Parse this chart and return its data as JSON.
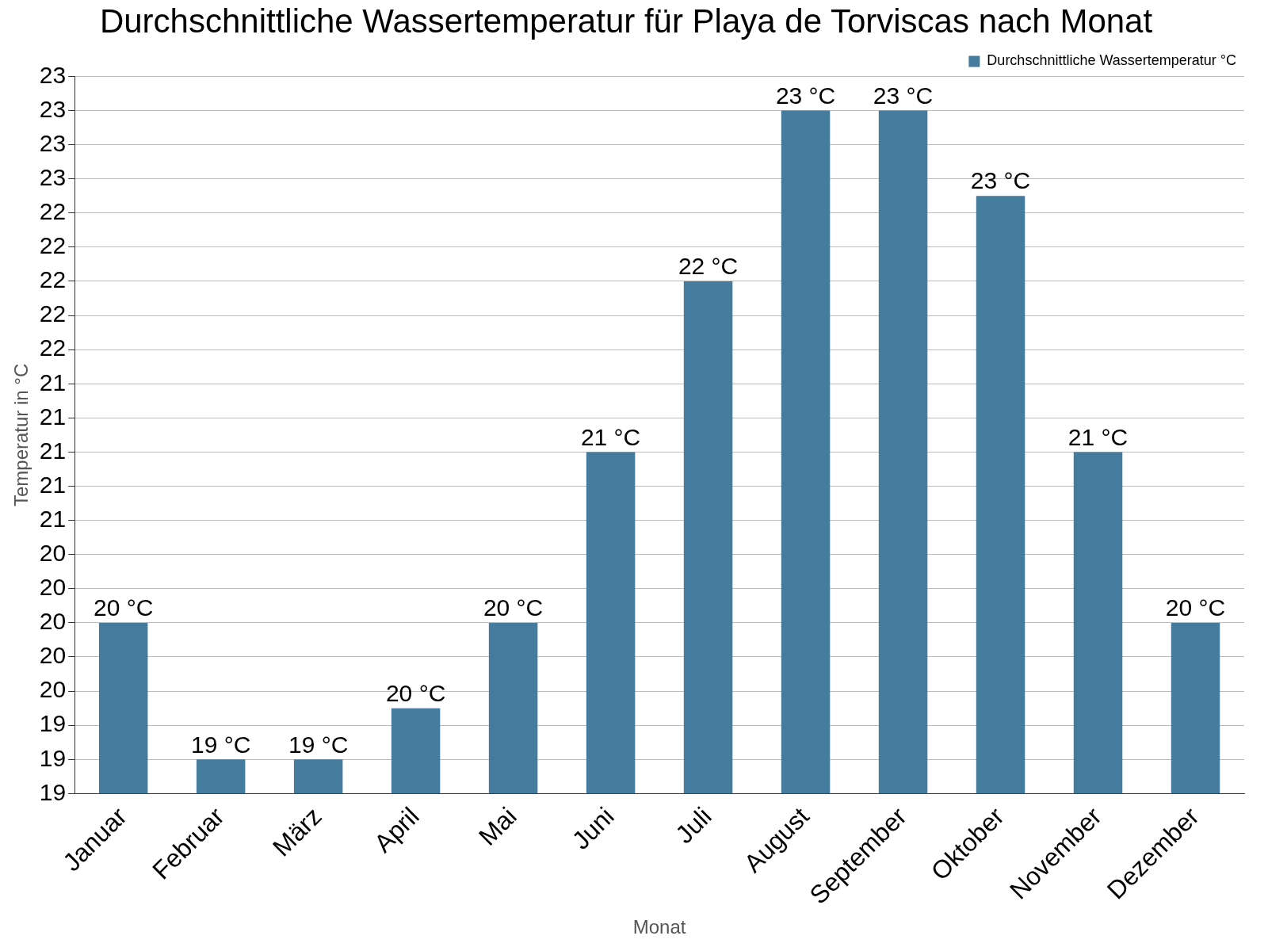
{
  "chart_data": {
    "type": "bar",
    "title": "Durchschnittliche Wassertemperatur für Playa de Torviscas nach Monat",
    "xlabel": "Monat",
    "ylabel": "Temperatur in °C",
    "categories": [
      "Januar",
      "Februar",
      "März",
      "April",
      "Mai",
      "Juni",
      "Juli",
      "August",
      "September",
      "Oktober",
      "November",
      "Dezember"
    ],
    "series": [
      {
        "name": "Durchschnittliche Wassertemperatur °C",
        "color": "#457b9d",
        "values": [
          20.0,
          19.2,
          19.2,
          19.5,
          20.0,
          21.0,
          22.0,
          23.0,
          23.0,
          22.5,
          21.0,
          20.0
        ],
        "value_labels": [
          "20 °C",
          "19 °C",
          "19 °C",
          "20 °C",
          "20 °C",
          "21 °C",
          "22 °C",
          "23 °C",
          "23 °C",
          "23 °C",
          "21 °C",
          "20 °C"
        ]
      }
    ],
    "ylim": [
      19.0,
      23.2
    ],
    "yticks": [
      {
        "value": 19.0,
        "label": "19"
      },
      {
        "value": 19.2,
        "label": "19"
      },
      {
        "value": 19.4,
        "label": "19"
      },
      {
        "value": 19.6,
        "label": "20"
      },
      {
        "value": 19.8,
        "label": "20"
      },
      {
        "value": 20.0,
        "label": "20"
      },
      {
        "value": 20.2,
        "label": "20"
      },
      {
        "value": 20.4,
        "label": "20"
      },
      {
        "value": 20.6,
        "label": "21"
      },
      {
        "value": 20.8,
        "label": "21"
      },
      {
        "value": 21.0,
        "label": "21"
      },
      {
        "value": 21.2,
        "label": "21"
      },
      {
        "value": 21.4,
        "label": "21"
      },
      {
        "value": 21.6,
        "label": "22"
      },
      {
        "value": 21.8,
        "label": "22"
      },
      {
        "value": 22.0,
        "label": "22"
      },
      {
        "value": 22.2,
        "label": "22"
      },
      {
        "value": 22.4,
        "label": "22"
      },
      {
        "value": 22.6,
        "label": "23"
      },
      {
        "value": 22.8,
        "label": "23"
      },
      {
        "value": 23.0,
        "label": "23"
      },
      {
        "value": 23.2,
        "label": "23"
      }
    ],
    "grid": "y",
    "legend": "top right"
  }
}
